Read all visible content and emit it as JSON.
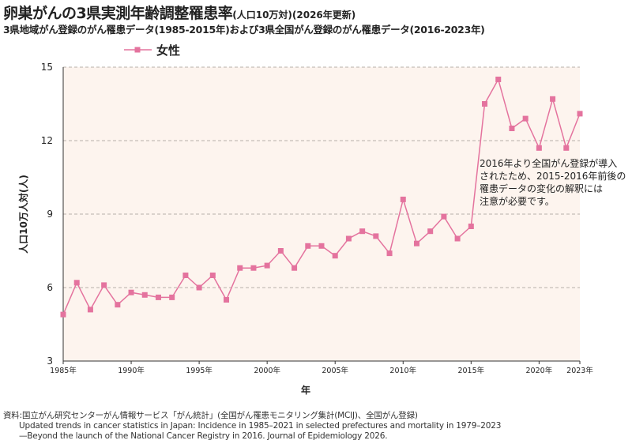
{
  "header": {
    "title": "卵巣がんの3県実測年齢調整罹患率",
    "title_note": "(人口10万対)(2026年更新)",
    "subtitle": "3県地域がん登録のがん罹患データ(1985-2015年)および3県全国がん登録のがん罹患データ(2016-2023年)"
  },
  "source": {
    "line1": "資料:国立がん研究センターがん情報サービス「がん統計」(全国がん罹患モニタリング集計(MCIJ)、全国がん登録)",
    "line2": "Updated trends in cancer statistics in Japan: Incidence in 1985–2021 in selected prefectures and mortality in 1979–2023",
    "line3": "—Beyond the launch of the National Cancer Registry in 2016. Journal of Epidemiology 2026."
  },
  "colors": {
    "series": "#e4739e",
    "plot_bg": "#fdf4ee",
    "grid": "#b8b0aa"
  },
  "chart_data": {
    "type": "line",
    "title": "卵巣がんの3県実測年齢調整罹患率",
    "xlabel": "年",
    "ylabel": "人口10万人対(人)",
    "xlim": [
      1985,
      2023
    ],
    "ylim": [
      3,
      15
    ],
    "yticks": [
      3,
      6,
      9,
      12,
      15
    ],
    "xtick_labels": [
      {
        "year": 1985,
        "label": "1985年"
      },
      {
        "year": 1990,
        "label": "1990年"
      },
      {
        "year": 1995,
        "label": "1995年"
      },
      {
        "year": 2000,
        "label": "2000年"
      },
      {
        "year": 2005,
        "label": "2005年"
      },
      {
        "year": 2010,
        "label": "2010年"
      },
      {
        "year": 2015,
        "label": "2015年"
      },
      {
        "year": 2020,
        "label": "2020年"
      },
      {
        "year": 2023,
        "label": "2023年"
      }
    ],
    "grid": "horizontal-dashed",
    "legend_position": "top-left",
    "series": [
      {
        "name": "女性",
        "marker": "square",
        "x": [
          1985,
          1986,
          1987,
          1988,
          1989,
          1990,
          1991,
          1992,
          1993,
          1994,
          1995,
          1996,
          1997,
          1998,
          1999,
          2000,
          2001,
          2002,
          2003,
          2004,
          2005,
          2006,
          2007,
          2008,
          2009,
          2010,
          2011,
          2012,
          2013,
          2014,
          2015,
          2016,
          2017,
          2018,
          2019,
          2020,
          2021,
          2022,
          2023
        ],
        "y": [
          4.9,
          6.2,
          5.1,
          6.1,
          5.3,
          5.8,
          5.7,
          5.6,
          5.6,
          6.5,
          6.0,
          6.5,
          5.5,
          6.8,
          6.8,
          6.9,
          7.5,
          6.8,
          7.7,
          7.7,
          7.3,
          8.0,
          8.3,
          8.1,
          7.4,
          9.6,
          7.8,
          8.3,
          8.9,
          8.0,
          8.5,
          13.5,
          14.5,
          12.5,
          12.9,
          11.7,
          13.7,
          11.7,
          13.1
        ]
      }
    ],
    "annotation": {
      "lines": [
        "2016年より全国がん登録が導入",
        "されたため、2015-2016年前後の",
        "罹患データの変化の解釈には",
        "注意が必要です。"
      ]
    }
  }
}
